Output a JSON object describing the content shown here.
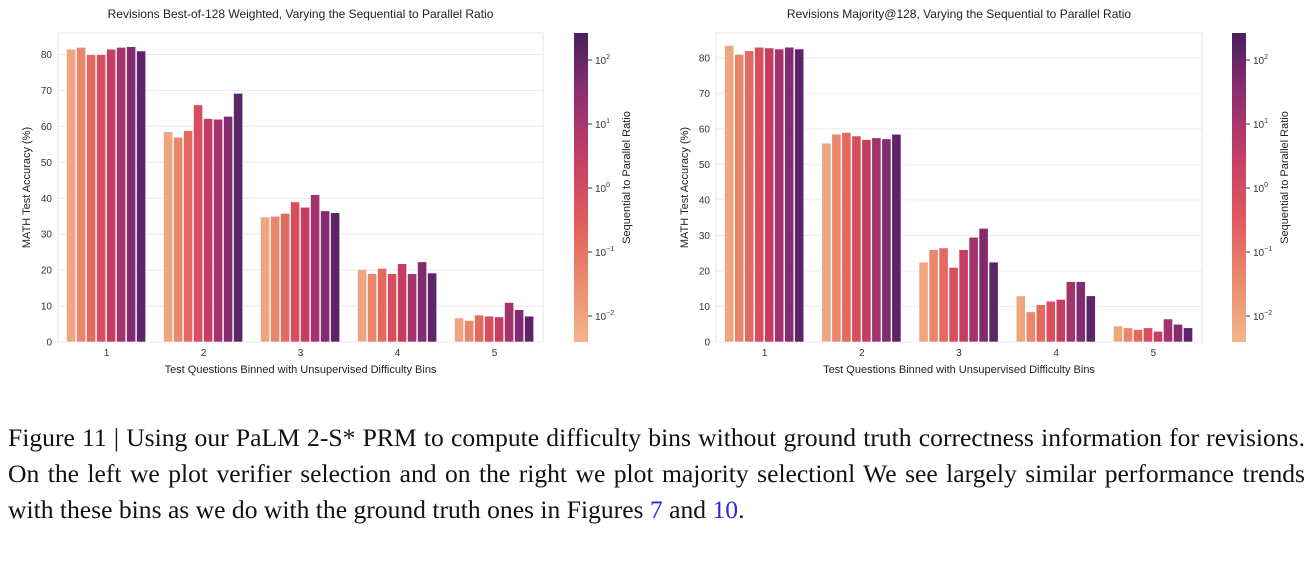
{
  "chart_data": [
    {
      "type": "bar",
      "title": "Revisions Best-of-128 Weighted, Varying the Sequential to Parallel Ratio",
      "xlabel": "Test Questions Binned with Unsupervised Difficulty Bins",
      "ylabel": "MATH Test Accuracy (%)",
      "ylim": [
        0,
        86
      ],
      "yticks": [
        0,
        10,
        20,
        30,
        40,
        50,
        60,
        70,
        80
      ],
      "grid": true,
      "categories": [
        "1",
        "2",
        "3",
        "4",
        "5"
      ],
      "series": [
        {
          "values": [
            81.5,
            58.5,
            34.8,
            20.2,
            6.7
          ]
        },
        {
          "values": [
            82.0,
            57.0,
            35.0,
            19.0,
            6.0
          ]
        },
        {
          "values": [
            80.0,
            58.8,
            35.8,
            20.5,
            7.5
          ]
        },
        {
          "values": [
            80.0,
            66.0,
            39.0,
            19.0,
            7.2
          ]
        },
        {
          "values": [
            81.5,
            62.2,
            37.5,
            21.8,
            7.0
          ]
        },
        {
          "values": [
            82.0,
            62.0,
            41.0,
            19.0,
            11.0
          ]
        },
        {
          "values": [
            82.2,
            62.8,
            36.5,
            22.3,
            9.0
          ]
        },
        {
          "values": [
            81.0,
            69.2,
            36.0,
            19.2,
            7.2
          ]
        }
      ],
      "colorbar": {
        "label": "Sequential to Parallel Ratio",
        "scale": "log",
        "ticks": [
          "10^{-2}",
          "10^{-1}",
          "10^{0}",
          "10^{1}",
          "10^{2}"
        ]
      }
    },
    {
      "type": "bar",
      "title": "Revisions Majority@128, Varying the Sequential to Parallel Ratio",
      "xlabel": "Test Questions Binned with Unsupervised Difficulty Bins",
      "ylabel": "MATH Test Accuracy (%)",
      "ylim": [
        0,
        87
      ],
      "yticks": [
        0,
        10,
        20,
        30,
        40,
        50,
        60,
        70,
        80
      ],
      "grid": true,
      "categories": [
        "1",
        "2",
        "3",
        "4",
        "5"
      ],
      "series": [
        {
          "values": [
            83.5,
            56.0,
            22.5,
            13.0,
            4.5
          ]
        },
        {
          "values": [
            81.0,
            58.5,
            26.0,
            8.5,
            4.0
          ]
        },
        {
          "values": [
            82.0,
            59.0,
            26.5,
            10.5,
            3.5
          ]
        },
        {
          "values": [
            83.0,
            58.0,
            21.0,
            11.5,
            4.0
          ]
        },
        {
          "values": [
            82.8,
            57.0,
            26.0,
            12.0,
            3.0
          ]
        },
        {
          "values": [
            82.5,
            57.5,
            29.5,
            17.0,
            6.5
          ]
        },
        {
          "values": [
            83.0,
            57.2,
            32.0,
            17.0,
            5.0
          ]
        },
        {
          "values": [
            82.5,
            58.5,
            22.5,
            13.0,
            4.0
          ]
        }
      ],
      "colorbar": {
        "label": "Sequential to Parallel Ratio",
        "scale": "log",
        "ticks": [
          "10^{-2}",
          "10^{-1}",
          "10^{0}",
          "10^{1}",
          "10^{2}"
        ]
      }
    }
  ],
  "colors": [
    "#eea67e",
    "#e9876d",
    "#e36a5f",
    "#d94e5f",
    "#c63d64",
    "#a4326b",
    "#832b6f",
    "#5e2469"
  ],
  "caption": {
    "part1": "Figure 11 | Using our PaLM 2-S* PRM to compute difficulty bins without ground truth correctness information for revisions. On the left we plot verifier selection and on the right we plot majority selectionl We see largely similar performance trends with these bins as we do with the ground truth ones in Figures ",
    "ref1": "7",
    "part2": " and ",
    "ref2": "10",
    "part3": "."
  }
}
